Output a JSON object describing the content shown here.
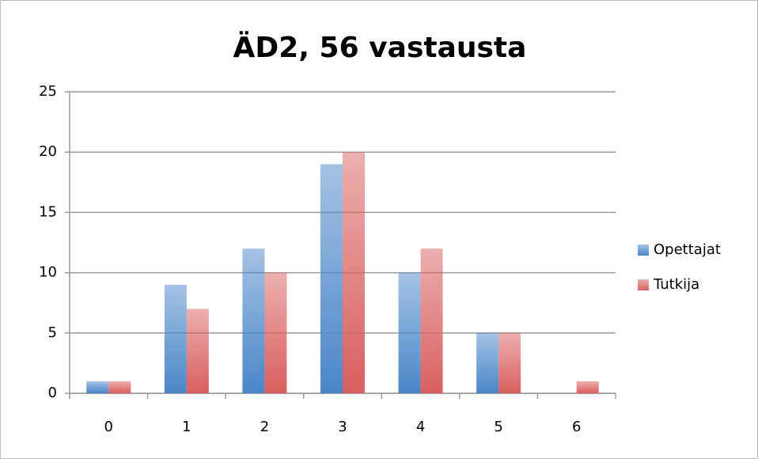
{
  "chart_data": {
    "type": "bar",
    "title": "ÄD2, 56 vastausta",
    "categories": [
      "0",
      "1",
      "2",
      "3",
      "4",
      "5",
      "6"
    ],
    "series": [
      {
        "name": "Opettajat",
        "color": "#4a86c8",
        "values": [
          1,
          9,
          12,
          19,
          10,
          5,
          0
        ]
      },
      {
        "name": "Tutkija",
        "color": "#d95f5f",
        "values": [
          1,
          7,
          10,
          20,
          12,
          5,
          1
        ]
      }
    ],
    "ylim": [
      0,
      25
    ],
    "yticks": [
      0,
      5,
      10,
      15,
      20,
      25
    ],
    "grid": true,
    "legend": "right"
  }
}
